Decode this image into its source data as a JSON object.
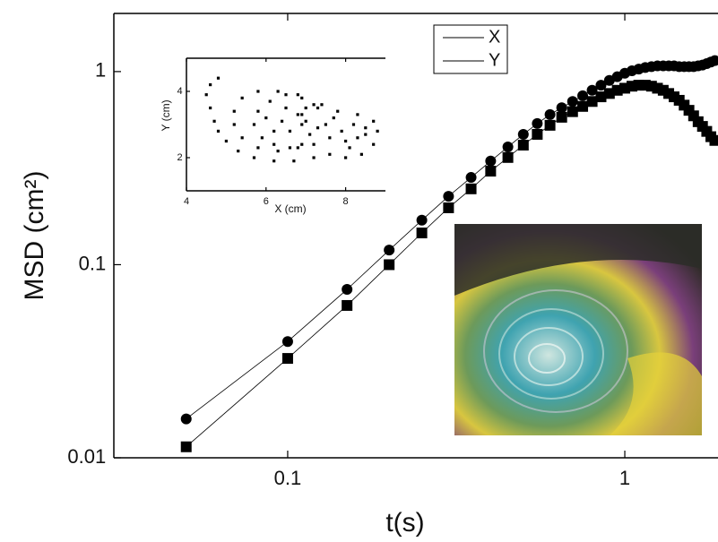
{
  "chart_data": [
    {
      "type": "line",
      "xlabel": "t(s)",
      "ylabel": "MSD (cm²)",
      "xscale": "log",
      "yscale": "log",
      "legend": "upper-right",
      "x": [
        0.05,
        0.1,
        0.15,
        0.2,
        0.25,
        0.3,
        0.35,
        0.4,
        0.45,
        0.5,
        0.55,
        0.6,
        0.65,
        0.7,
        0.75,
        0.8,
        0.85,
        0.9,
        0.95,
        1.0,
        1.05,
        1.1,
        1.15,
        1.2,
        1.25,
        1.3,
        1.35,
        1.4,
        1.45,
        1.5,
        1.55,
        1.6,
        1.65,
        1.7,
        1.75,
        1.8,
        1.85
      ],
      "series": [
        {
          "name": "X",
          "color": "#000000",
          "marker": "circle",
          "values": [
            0.0159,
            0.04,
            0.0745,
            0.119,
            0.17,
            0.226,
            0.283,
            0.344,
            0.407,
            0.473,
            0.538,
            0.599,
            0.65,
            0.7,
            0.75,
            0.8,
            0.85,
            0.9,
            0.94,
            0.98,
            1.01,
            1.03,
            1.05,
            1.06,
            1.07,
            1.07,
            1.07,
            1.07,
            1.06,
            1.06,
            1.06,
            1.06,
            1.07,
            1.08,
            1.1,
            1.12,
            1.14
          ]
        },
        {
          "name": "Y",
          "color": "#000000",
          "marker": "square",
          "values": [
            0.0114,
            0.0327,
            0.0615,
            0.1,
            0.146,
            0.197,
            0.247,
            0.305,
            0.359,
            0.416,
            0.473,
            0.527,
            0.58,
            0.62,
            0.66,
            0.7,
            0.74,
            0.77,
            0.8,
            0.82,
            0.84,
            0.85,
            0.85,
            0.84,
            0.82,
            0.8,
            0.77,
            0.74,
            0.71,
            0.67,
            0.63,
            0.59,
            0.55,
            0.52,
            0.49,
            0.46,
            0.44
          ]
        }
      ],
      "xlim": [
        0.0305,
        1.89
      ],
      "xticks": [
        0.1,
        1
      ],
      "ylim": [
        0.01,
        2.0
      ],
      "yticks": [
        0.01,
        0.1,
        1
      ]
    },
    {
      "type": "scatter",
      "xlabel": "X (cm)",
      "ylabel": "Y (cm)",
      "color": "#000000",
      "x": [
        4.8,
        4.6,
        4.5,
        4.6,
        4.7,
        4.8,
        5.0,
        5.3,
        5.7,
        6.2,
        6.7,
        7.2,
        7.6,
        8.0,
        8.4,
        8.7,
        8.8,
        8.7,
        8.3,
        7.8,
        7.3,
        7.0,
        6.8,
        6.9,
        7.1,
        6.9,
        6.6,
        6.2,
        5.9,
        5.7,
        5.8,
        6.1,
        6.5,
        6.9,
        7.2,
        6.8,
        6.3,
        5.8,
        5.4,
        5.2,
        5.2,
        5.4,
        5.8,
        6.3,
        6.8,
        7.2,
        7.6,
        8.0,
        8.3,
        8.5,
        8.2,
        7.9,
        7.5,
        7.0,
        6.6,
        6.4,
        6.5,
        6.9,
        7.3,
        8.1,
        8.5,
        7.7,
        7.4,
        6.0,
        6.2
      ],
      "values": [
        4.4,
        4.2,
        3.9,
        3.5,
        3.1,
        2.8,
        2.5,
        2.2,
        2.0,
        1.9,
        1.9,
        2.0,
        2.1,
        2.0,
        2.1,
        2.4,
        2.8,
        3.1,
        3.3,
        3.4,
        3.5,
        3.5,
        3.3,
        3.0,
        2.7,
        2.4,
        2.3,
        2.4,
        2.6,
        3.0,
        3.4,
        3.7,
        3.9,
        3.8,
        3.6,
        3.9,
        4.0,
        4.0,
        3.8,
        3.4,
        3.0,
        2.6,
        2.3,
        2.2,
        2.3,
        2.4,
        2.6,
        2.5,
        2.6,
        2.9,
        3.0,
        2.8,
        3.0,
        3.1,
        2.8,
        3.1,
        3.5,
        3.3,
        2.9,
        2.3,
        2.7,
        3.2,
        3.6,
        3.2,
        2.8
      ],
      "xlim": [
        4,
        9
      ],
      "xticks": [
        4,
        6,
        8
      ],
      "ylim": [
        1,
        5
      ],
      "yticks": [
        2,
        4
      ]
    }
  ]
}
